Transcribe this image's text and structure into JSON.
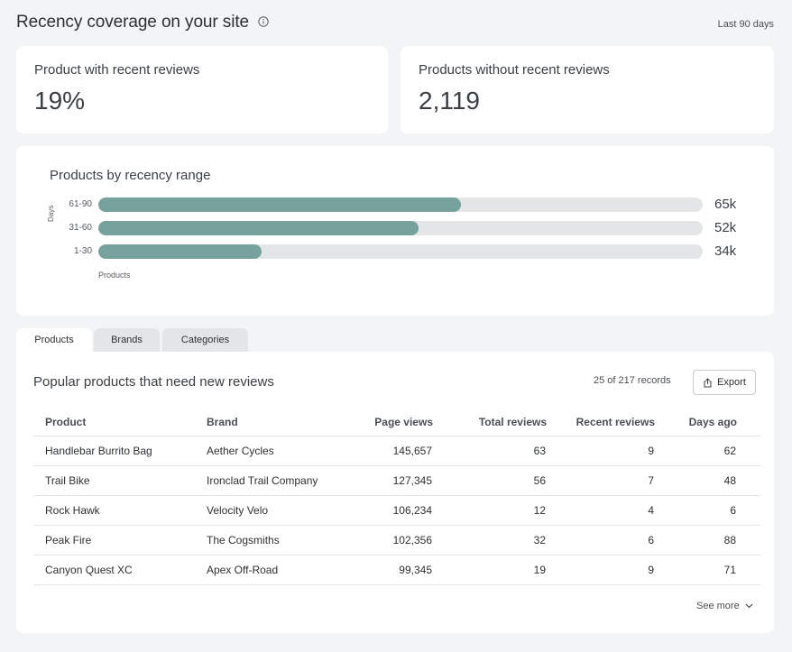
{
  "header": {
    "title": "Recency coverage on your site",
    "period": "Last 90 days"
  },
  "stats": [
    {
      "label": "Product with recent reviews",
      "value": "19%"
    },
    {
      "label": "Products without recent reviews",
      "value": "2,119"
    }
  ],
  "chart_data": {
    "type": "bar",
    "orientation": "horizontal",
    "title": "Products by recency range",
    "ylabel": "Days",
    "xlabel": "Products",
    "categories": [
      "61-90",
      "31-60",
      "1-30"
    ],
    "values": [
      65000,
      52000,
      34000
    ],
    "value_labels": [
      "65k",
      "52k",
      "34k"
    ],
    "fill_fractions": [
      0.6,
      0.53,
      0.27
    ],
    "bar_color": "#76a19c",
    "track_color": "#e4e5e6"
  },
  "tabs": [
    {
      "label": "Products",
      "active": true
    },
    {
      "label": "Brands",
      "active": false
    },
    {
      "label": "Categories",
      "active": false
    }
  ],
  "table": {
    "title": "Popular products that need new reviews",
    "records": "25 of 217 records",
    "export_label": "Export",
    "columns": [
      "Product",
      "Brand",
      "Page views",
      "Total reviews",
      "Recent reviews",
      "Days ago"
    ],
    "rows": [
      [
        "Handlebar Burrito Bag",
        "Aether Cycles",
        "145,657",
        "63",
        "9",
        "62"
      ],
      [
        "Trail Bike",
        "Ironclad Trail Company",
        "127,345",
        "56",
        "7",
        "48"
      ],
      [
        "Rock Hawk",
        "Velocity Velo",
        "106,234",
        "12",
        "4",
        "6"
      ],
      [
        "Peak Fire",
        "The Cogsmiths",
        "102,356",
        "32",
        "6",
        "88"
      ],
      [
        "Canyon Quest XC",
        "Apex Off-Road",
        "99,345",
        "19",
        "9",
        "71"
      ]
    ],
    "see_more": "See more"
  },
  "icons": {
    "info": "info-icon",
    "export": "share-icon",
    "see_more": "chevron-down-icon"
  }
}
